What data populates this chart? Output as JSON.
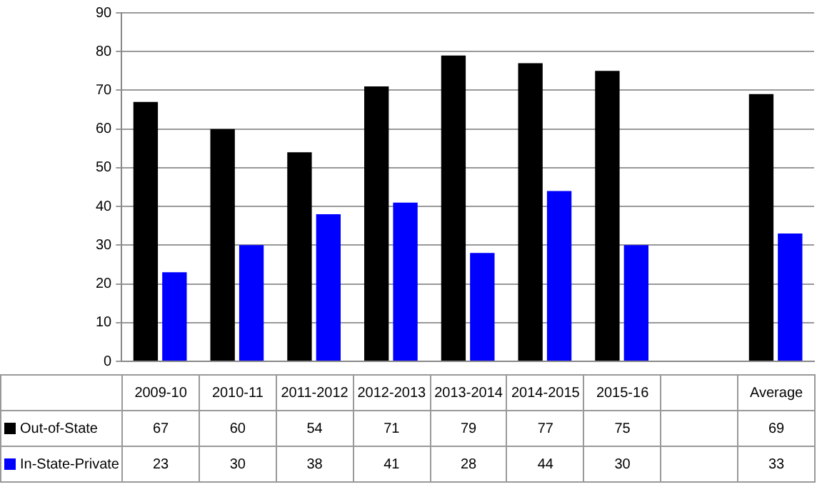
{
  "chart_data": {
    "type": "bar",
    "categories": [
      "2009-10",
      "2010-11",
      "2011-2012",
      "2012-2013",
      "2013-2014",
      "2014-2015",
      "2015-16",
      null,
      "Average"
    ],
    "series": [
      {
        "name": "Out-of-State",
        "color": "#000000",
        "values": [
          67,
          60,
          54,
          71,
          79,
          77,
          75,
          null,
          69
        ]
      },
      {
        "name": "In-State-Private",
        "color": "#0000ff",
        "values": [
          23,
          30,
          38,
          41,
          28,
          44,
          30,
          null,
          33
        ]
      }
    ],
    "ylim": [
      0,
      90
    ],
    "yticks": [
      0,
      10,
      20,
      30,
      40,
      50,
      60,
      70,
      80,
      90
    ],
    "grid": "y",
    "legend": "bottom",
    "data_labels": true
  }
}
